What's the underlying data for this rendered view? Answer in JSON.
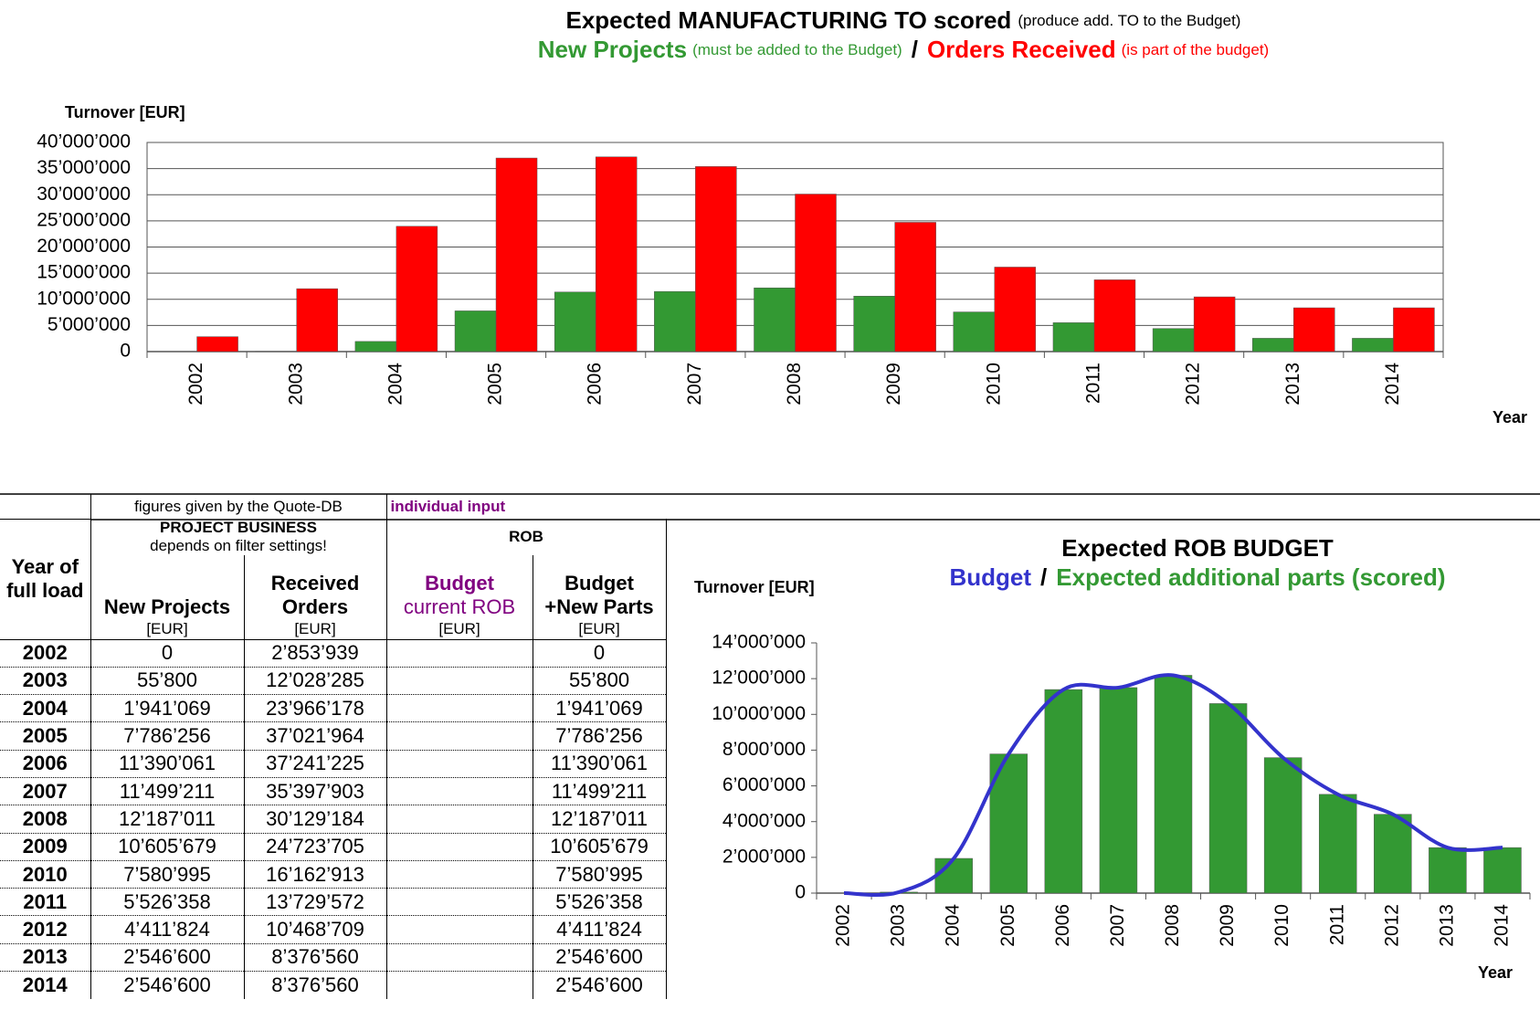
{
  "chart_data": [
    {
      "type": "bar",
      "title": "Expected MANUFACTURING TO scored",
      "title_note": "(produce add. TO to the Budget)",
      "separator": "/",
      "y_label": "Turnover [EUR]",
      "x_label": "Year",
      "categories": [
        "2002",
        "2003",
        "2004",
        "2005",
        "2006",
        "2007",
        "2008",
        "2009",
        "2010",
        "2011",
        "2012",
        "2013",
        "2014"
      ],
      "series": [
        {
          "name": "New Projects",
          "note": "(must be added to the Budget)",
          "color": "#339933",
          "values": [
            0,
            55800,
            1941069,
            7786256,
            11390061,
            11499211,
            12187011,
            10605679,
            7580995,
            5526358,
            4411824,
            2546600,
            2546600
          ]
        },
        {
          "name": "Orders Received",
          "note": "(is part of the budget)",
          "color": "#ff0000",
          "values": [
            2853939,
            12028285,
            23966178,
            37021964,
            37241225,
            35397903,
            30129184,
            24723705,
            16162913,
            13729572,
            10468709,
            8376560,
            8376560
          ]
        }
      ],
      "ylim": [
        0,
        40000000
      ],
      "yticks": [
        {
          "value": 0,
          "label": "0"
        },
        {
          "value": 5000000,
          "label": "5’000’000"
        },
        {
          "value": 10000000,
          "label": "10’000’000"
        },
        {
          "value": 15000000,
          "label": "15’000’000"
        },
        {
          "value": 20000000,
          "label": "20’000’000"
        },
        {
          "value": 25000000,
          "label": "25’000’000"
        },
        {
          "value": 30000000,
          "label": "30’000’000"
        },
        {
          "value": 35000000,
          "label": "35’000’000"
        },
        {
          "value": 40000000,
          "label": "40’000’000"
        }
      ],
      "grid": true
    },
    {
      "type": "combo",
      "title": "Expected ROB BUDGET",
      "separator": "/",
      "y_label": "Turnover [EUR]",
      "x_label": "Year",
      "categories": [
        "2002",
        "2003",
        "2004",
        "2005",
        "2006",
        "2007",
        "2008",
        "2009",
        "2010",
        "2011",
        "2012",
        "2013",
        "2014"
      ],
      "series": [
        {
          "name": "Budget",
          "type": "line",
          "color": "#3333cc",
          "values": [
            0,
            55800,
            1941069,
            7786256,
            11390061,
            11499211,
            12187011,
            10605679,
            7580995,
            5526358,
            4411824,
            2546600,
            2546600
          ]
        },
        {
          "name": "Expected additional parts (scored)",
          "type": "bar",
          "color": "#339933",
          "values": [
            0,
            55800,
            1941069,
            7786256,
            11390061,
            11499211,
            12187011,
            10605679,
            7580995,
            5526358,
            4411824,
            2546600,
            2546600
          ]
        }
      ],
      "ylim": [
        0,
        14000000
      ],
      "yticks": [
        {
          "value": 0,
          "label": "0"
        },
        {
          "value": 2000000,
          "label": "2’000’000"
        },
        {
          "value": 4000000,
          "label": "4’000’000"
        },
        {
          "value": 6000000,
          "label": "6’000’000"
        },
        {
          "value": 8000000,
          "label": "8’000’000"
        },
        {
          "value": 10000000,
          "label": "10’000’000"
        },
        {
          "value": 12000000,
          "label": "12’000’000"
        },
        {
          "value": 14000000,
          "label": "14’000’000"
        }
      ],
      "grid": false
    }
  ],
  "table": {
    "top": [
      "figures given by the Quote-DB",
      "individual input"
    ],
    "year_header": [
      "Year of",
      "full load"
    ],
    "group": {
      "title": "PROJECT BUSINESS",
      "note": "depends on filter settings!"
    },
    "rob": "ROB",
    "columns": [
      [
        "New Projects"
      ],
      [
        "Received",
        "Orders"
      ],
      [
        "Budget",
        "current ROB"
      ],
      [
        "Budget",
        "+New Parts"
      ]
    ],
    "units": [
      "[EUR]",
      "[EUR]",
      "[EUR]",
      "[EUR]"
    ],
    "rows": [
      [
        "2002",
        "0",
        "2’853’939",
        null,
        "0"
      ],
      [
        "2003",
        "55’800",
        "12’028’285",
        null,
        "55’800"
      ],
      [
        "2004",
        "1’941’069",
        "23’966’178",
        null,
        "1’941’069"
      ],
      [
        "2005",
        "7’786’256",
        "37’021’964",
        null,
        "7’786’256"
      ],
      [
        "2006",
        "11’390’061",
        "37’241’225",
        null,
        "11’390’061"
      ],
      [
        "2007",
        "11’499’211",
        "35’397’903",
        null,
        "11’499’211"
      ],
      [
        "2008",
        "12’187’011",
        "30’129’184",
        null,
        "12’187’011"
      ],
      [
        "2009",
        "10’605’679",
        "24’723’705",
        null,
        "10’605’679"
      ],
      [
        "2010",
        "7’580’995",
        "16’162’913",
        null,
        "7’580’995"
      ],
      [
        "2011",
        "5’526’358",
        "13’729’572",
        null,
        "5’526’358"
      ],
      [
        "2012",
        "4’411’824",
        "10’468’709",
        null,
        "4’411’824"
      ],
      [
        "2013",
        "2’546’600",
        "8’376’560",
        null,
        "2’546’600"
      ],
      [
        "2014",
        "2’546’600",
        "8’376’560",
        null,
        "2’546’600"
      ]
    ]
  }
}
